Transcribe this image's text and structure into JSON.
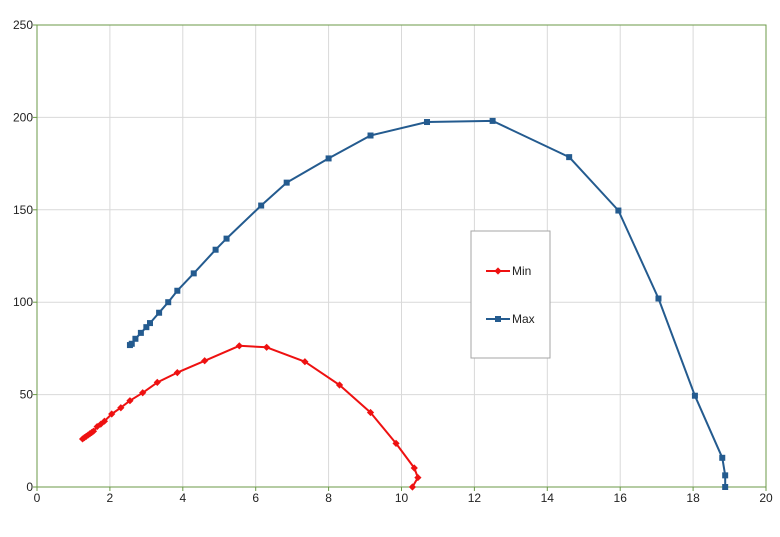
{
  "chart_data": {
    "type": "line",
    "title": "",
    "xlabel": "",
    "ylabel": "",
    "xlim": [
      0,
      20
    ],
    "ylim": [
      0,
      250
    ],
    "x_ticks": [
      0,
      2,
      4,
      6,
      8,
      10,
      12,
      14,
      16,
      18,
      20
    ],
    "y_ticks": [
      0,
      50,
      100,
      150,
      200,
      250
    ],
    "grid": true,
    "legend_position": "center-right",
    "colors": {
      "axes_frame": "#6b9a47",
      "grid": "#d9d9d9"
    },
    "series": [
      {
        "name": "Min",
        "color": "#ee1111",
        "marker": "diamond",
        "points": [
          [
            1.25,
            26
          ],
          [
            1.3,
            26.7
          ],
          [
            1.35,
            27.4
          ],
          [
            1.4,
            28.1
          ],
          [
            1.45,
            28.8
          ],
          [
            1.5,
            29.5
          ],
          [
            1.55,
            30.2
          ],
          [
            1.65,
            32.7
          ],
          [
            1.75,
            34
          ],
          [
            1.85,
            35.6
          ],
          [
            2.05,
            39.5
          ],
          [
            2.3,
            42.9
          ],
          [
            2.55,
            46.7
          ],
          [
            2.9,
            51
          ],
          [
            3.3,
            56.6
          ],
          [
            3.85,
            61.9
          ],
          [
            4.6,
            68.3
          ],
          [
            5.55,
            76.4
          ],
          [
            6.3,
            75.6
          ],
          [
            7.35,
            67.8
          ],
          [
            8.3,
            55.2
          ],
          [
            9.15,
            40.3
          ],
          [
            9.85,
            23.6
          ],
          [
            10.35,
            10.3
          ],
          [
            10.45,
            5.1
          ],
          [
            10.3,
            0
          ]
        ]
      },
      {
        "name": "Max",
        "color": "#245b8f",
        "marker": "square",
        "points": [
          [
            2.55,
            76.8
          ],
          [
            2.6,
            77.5
          ],
          [
            2.7,
            80.2
          ],
          [
            2.85,
            83.4
          ],
          [
            3.0,
            86.5
          ],
          [
            3.1,
            88.7
          ],
          [
            3.35,
            94.3
          ],
          [
            3.6,
            100
          ],
          [
            3.85,
            106.2
          ],
          [
            4.3,
            115.6
          ],
          [
            4.9,
            128.4
          ],
          [
            5.2,
            134.4
          ],
          [
            6.15,
            152.3
          ],
          [
            6.85,
            164.7
          ],
          [
            8.0,
            177.8
          ],
          [
            9.15,
            190.2
          ],
          [
            10.7,
            197.5
          ],
          [
            12.5,
            198.1
          ],
          [
            14.6,
            178.5
          ],
          [
            15.95,
            149.6
          ],
          [
            17.05,
            102
          ],
          [
            18.05,
            49.4
          ],
          [
            18.8,
            15.8
          ],
          [
            18.88,
            6.3
          ],
          [
            18.88,
            0
          ]
        ]
      }
    ]
  }
}
